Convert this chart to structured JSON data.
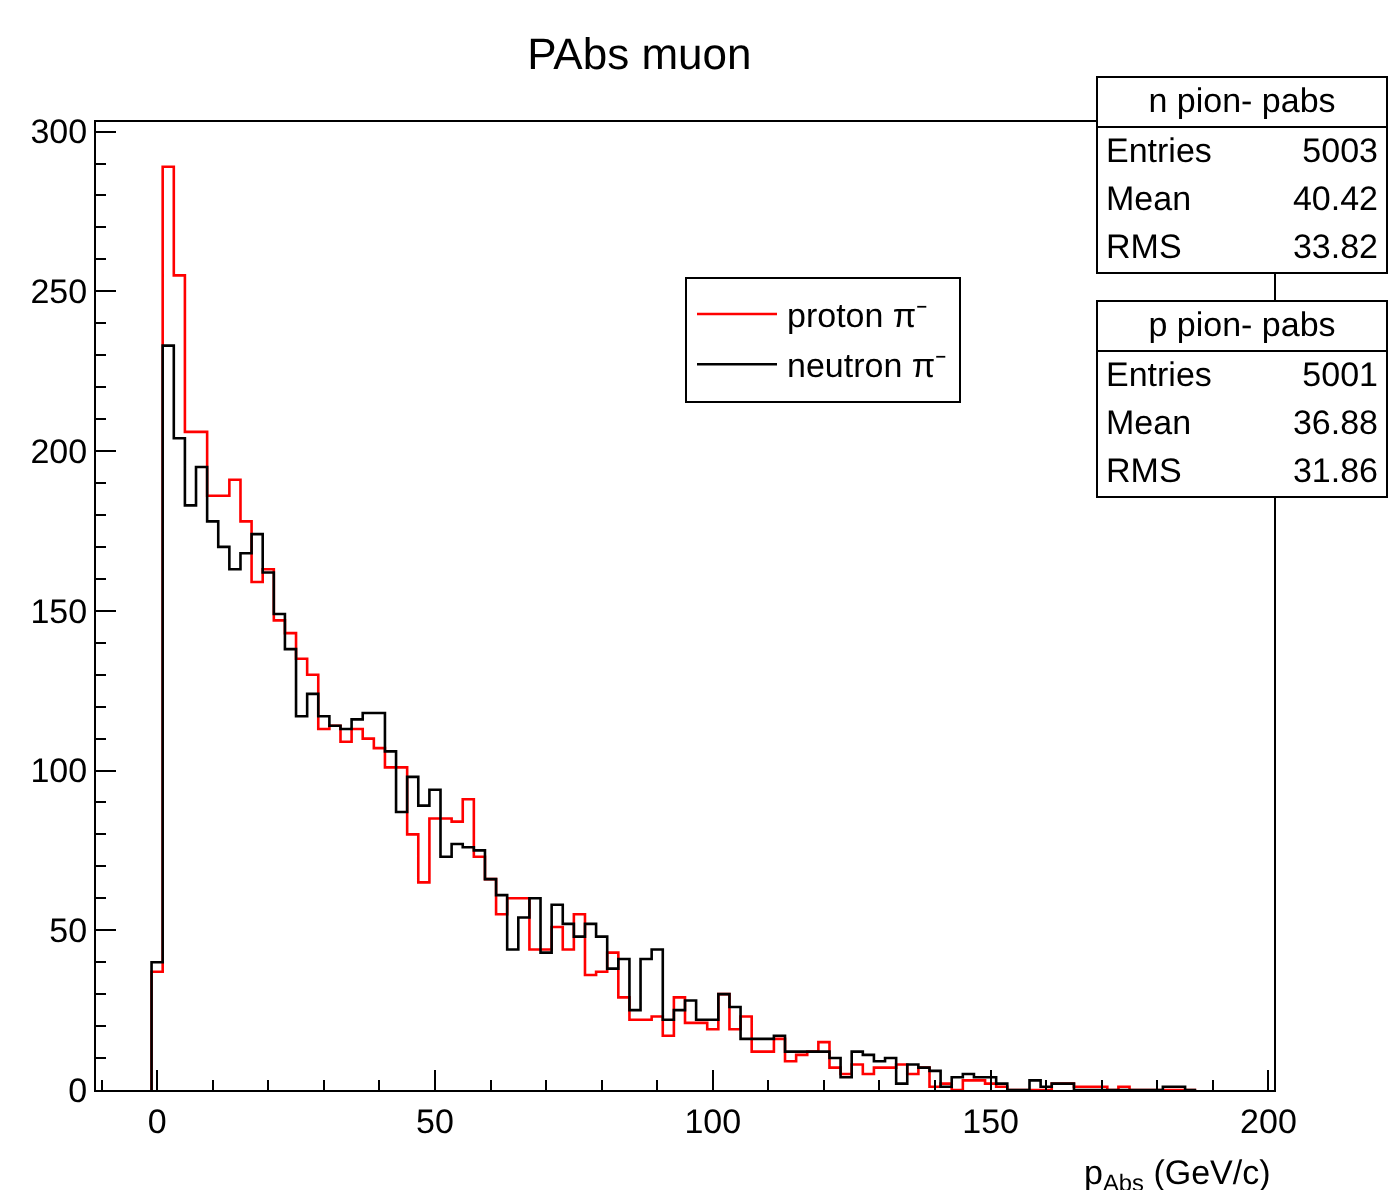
{
  "chart_data": {
    "type": "histogram",
    "title": "PAbs muon",
    "xlabel": "p$_{Abs}$ (GeV/c)",
    "bins": [
      -1,
      1,
      3,
      5,
      7,
      9,
      11,
      13,
      15,
      17,
      19,
      21,
      23,
      25,
      27,
      29,
      31,
      33,
      35,
      37,
      39,
      41,
      43,
      45,
      47,
      49,
      51,
      53,
      55,
      57,
      59,
      61,
      63,
      65,
      67,
      69,
      71,
      73,
      75,
      77,
      79,
      81,
      83,
      85,
      87,
      89,
      91,
      93,
      95,
      97,
      99,
      101,
      103,
      105,
      107,
      109,
      111,
      113,
      115,
      117,
      119,
      121,
      123,
      125,
      127,
      129,
      131,
      133,
      135,
      137,
      139,
      141,
      143,
      145,
      147,
      149,
      151,
      153,
      155,
      157,
      159,
      161,
      163,
      165,
      167,
      169,
      171,
      173,
      175,
      177,
      179,
      181,
      183,
      185,
      187
    ],
    "series": [
      {
        "name": "proton π⁻",
        "color": "#ff0000",
        "values": [
          37,
          289,
          255,
          206,
          206,
          186,
          186,
          191,
          178,
          159,
          163,
          147,
          143,
          135,
          130,
          113,
          114,
          109,
          113,
          110,
          107,
          101,
          101,
          80,
          65,
          85,
          85,
          84,
          91,
          73,
          66,
          55,
          60,
          60,
          44,
          44,
          51,
          44,
          55,
          36,
          37,
          43,
          29,
          22,
          22,
          23,
          17,
          29,
          21,
          21,
          19,
          30,
          19,
          23,
          12,
          12,
          16,
          9,
          11,
          12,
          15,
          7,
          5,
          8,
          5,
          7,
          7,
          8,
          5,
          7,
          1,
          2,
          0,
          3,
          3,
          2,
          1,
          0,
          0,
          0,
          0,
          2,
          2,
          1,
          1,
          1,
          0,
          1,
          0,
          0,
          0,
          0,
          0,
          0
        ]
      },
      {
        "name": "neutron π⁻",
        "color": "#000000",
        "values": [
          40,
          233,
          204,
          183,
          195,
          178,
          170,
          163,
          168,
          174,
          162,
          149,
          138,
          117,
          124,
          117,
          114,
          113,
          116,
          118,
          118,
          106,
          87,
          98,
          89,
          94,
          73,
          77,
          76,
          75,
          66,
          61,
          44,
          54,
          60,
          43,
          58,
          52,
          48,
          52,
          48,
          38,
          41,
          25,
          41,
          44,
          22,
          25,
          28,
          22,
          22,
          30,
          26,
          16,
          16,
          16,
          17,
          12,
          12,
          12,
          12,
          10,
          4,
          12,
          11,
          9,
          10,
          2,
          8,
          7,
          6,
          1,
          4,
          5,
          4,
          4,
          2,
          0,
          0,
          3,
          1,
          2,
          2,
          0,
          0,
          0,
          0,
          0,
          0,
          0,
          0,
          1,
          1,
          0
        ]
      }
    ],
    "xlim": [
      -11,
      201
    ],
    "xticks": [
      0,
      50,
      100,
      150,
      200
    ],
    "ylim": [
      0,
      303
    ],
    "yticks": [
      0,
      50,
      100,
      150,
      200,
      250,
      300
    ],
    "grid": false,
    "legend": "top right",
    "annotations": [
      "n pion- pabs",
      "Entries",
      "5003",
      "Mean",
      "40.42",
      "RMS",
      "33.82",
      "p pion- pabs",
      "Entries",
      "5001",
      "Mean",
      "36.88",
      "RMS",
      "31.86"
    ]
  }
}
